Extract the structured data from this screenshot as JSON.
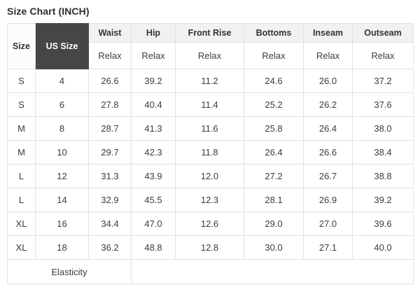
{
  "page": {
    "title": "Size Chart (INCH)"
  },
  "table": {
    "header": {
      "size_label": "Size",
      "us_size_label": "US Size",
      "measure_columns": [
        "Waist",
        "Hip",
        "Front Rise",
        "Bottoms",
        "Inseam",
        "Outseam"
      ],
      "sub_labels": [
        "Relax",
        "Relax",
        "Relax",
        "Relax",
        "Relax",
        "Relax"
      ]
    },
    "rows": [
      [
        "S",
        "4",
        "26.6",
        "39.2",
        "11.2",
        "24.6",
        "26.0",
        "37.2"
      ],
      [
        "S",
        "6",
        "27.8",
        "40.4",
        "11.4",
        "25.2",
        "26.2",
        "37.6"
      ],
      [
        "M",
        "8",
        "28.7",
        "41.3",
        "11.6",
        "25.8",
        "26.4",
        "38.0"
      ],
      [
        "M",
        "10",
        "29.7",
        "42.3",
        "11.8",
        "26.4",
        "26.6",
        "38.4"
      ],
      [
        "L",
        "12",
        "31.3",
        "43.9",
        "12.0",
        "27.2",
        "26.7",
        "38.8"
      ],
      [
        "L",
        "14",
        "32.9",
        "45.5",
        "12.3",
        "28.1",
        "26.9",
        "39.2"
      ],
      [
        "XL",
        "16",
        "34.4",
        "47.0",
        "12.6",
        "29.0",
        "27.0",
        "39.6"
      ],
      [
        "XL",
        "18",
        "36.2",
        "48.8",
        "12.8",
        "30.0",
        "27.1",
        "40.0"
      ]
    ],
    "footer_label": "Elasticity"
  },
  "colors": {
    "us_size_bg": "#464649",
    "us_size_text": "#ffffff",
    "header_bg": "#f1f1f1",
    "border": "#e2e2e2",
    "text": "#3c3c3c"
  }
}
